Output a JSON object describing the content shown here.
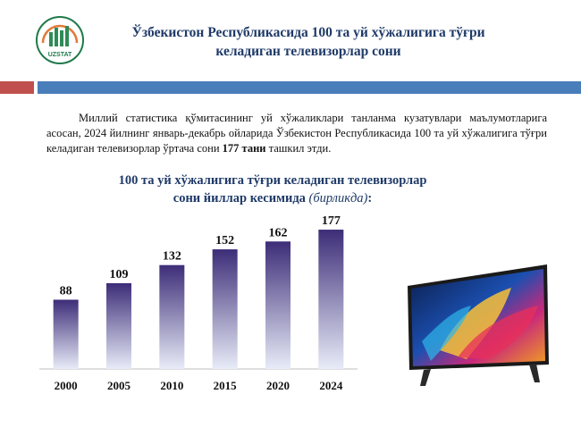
{
  "header": {
    "logo_text": "UZSTAT",
    "title_line1": "Ўзбекистон Республикасида 100 та уй хўжалигига тўғри",
    "title_line2": "келадиган телевизорлар сони"
  },
  "intro": {
    "text_before": "Миллий статистика қўмитасининг уй хўжаликлари танланма кузатувлари маълумотларига асосан, 2024 йилнинг январь-декабрь ойларида Ўзбекистон Республикасида 100 та уй хўжалигига тўғри келадиган телевизорлар ўртача сони ",
    "highlight": "177 тани",
    "text_after": " ташкил этди."
  },
  "colors": {
    "title_blue": "#1f3a68",
    "accent_red": "#c0504d",
    "accent_blue": "#4a7ebb",
    "bar_top": "#3d2d78",
    "bar_bottom": "#e8ecf8"
  },
  "chart_data": {
    "type": "bar",
    "title_line1": "100 та уй хўжалигига тўғри келадиган телевизорлар",
    "title_line2": "сони йиллар кесимида",
    "unit_label": "(бирликда)",
    "title_suffix": ":",
    "categories": [
      "2000",
      "2005",
      "2010",
      "2015",
      "2020",
      "2024"
    ],
    "values": [
      88,
      109,
      132,
      152,
      162,
      177
    ],
    "ylim": [
      0,
      185
    ],
    "grid": false,
    "legend": "none"
  }
}
